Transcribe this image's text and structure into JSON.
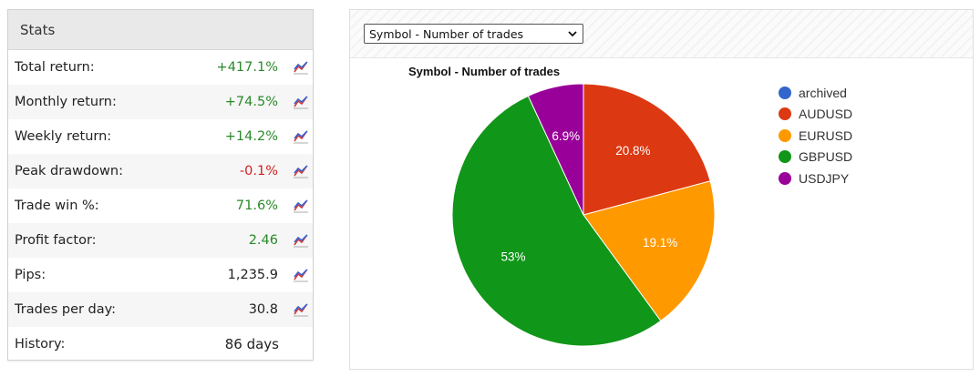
{
  "stats": {
    "header": "Stats",
    "rows": [
      {
        "label": "Total return:",
        "value": "+417.1%",
        "tone": "pos",
        "icon": true
      },
      {
        "label": "Monthly return:",
        "value": "+74.5%",
        "tone": "pos",
        "icon": true
      },
      {
        "label": "Weekly return:",
        "value": "+14.2%",
        "tone": "pos",
        "icon": true
      },
      {
        "label": "Peak drawdown:",
        "value": "-0.1%",
        "tone": "neg",
        "icon": true
      },
      {
        "label": "Trade win %:",
        "value": "71.6%",
        "tone": "pos",
        "icon": true
      },
      {
        "label": "Profit factor:",
        "value": "2.46",
        "tone": "pos",
        "icon": true
      },
      {
        "label": "Pips:",
        "value": "1,235.9",
        "tone": "neutral",
        "icon": true
      },
      {
        "label": "Trades per day:",
        "value": "30.8",
        "tone": "neutral",
        "icon": true
      },
      {
        "label": "History:",
        "value": "86 days",
        "tone": "neutral",
        "icon": false
      }
    ],
    "icon_name": "line-chart-icon",
    "colors": {
      "positive": "#2a8a2a",
      "negative": "#d02020"
    }
  },
  "chart_panel": {
    "select_value": "Symbol - Number of trades",
    "select_icon": "chevron-down-icon"
  },
  "chart_data": {
    "type": "pie",
    "title": "Symbol - Number of trades",
    "slices": [
      {
        "name": "archived",
        "value": 0,
        "color": "#3366cc",
        "label": ""
      },
      {
        "name": "AUDUSD",
        "value": 20.8,
        "color": "#dc3912",
        "label": "20.8%"
      },
      {
        "name": "EURUSD",
        "value": 19.1,
        "color": "#ff9900",
        "label": "19.1%"
      },
      {
        "name": "GBPUSD",
        "value": 53,
        "color": "#109618",
        "label": "53%"
      },
      {
        "name": "USDJPY",
        "value": 6.9,
        "color": "#990099",
        "label": "6.9%"
      }
    ],
    "legend_position": "right"
  }
}
